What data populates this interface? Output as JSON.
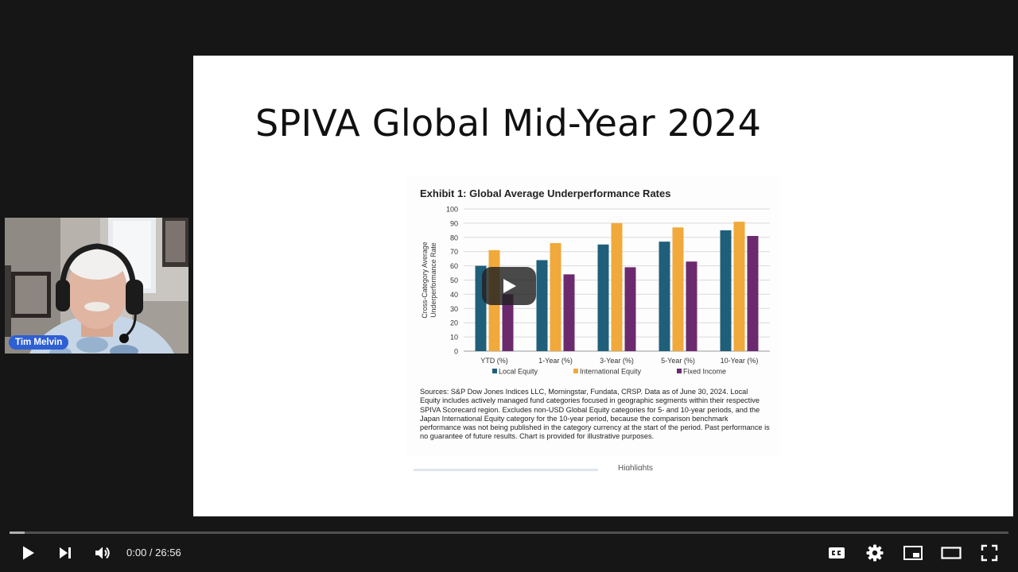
{
  "slide": {
    "title": "SPIVA Global Mid-Year 2024"
  },
  "exhibit": {
    "title": "Exhibit 1: Global Average Underperformance Rates",
    "sources": "Sources: S&P Dow Jones Indices LLC, Morningstar, Fundata, CRSP.  Data as of June 30, 2024.  Local Equity includes actively managed fund categories focused in geographic segments within their respective SPIVA Scorecard region.  Excludes non-USD Global Equity categories for 5- and 10-year periods, and the Japan International Equity category for the 10-year period, because the comparison benchmark performance was not being published in the category currency at the start of the period.  Past performance is no guarantee of future results.  Chart is provided for illustrative purposes.",
    "footer_fragment": "Highlights"
  },
  "chart_data": {
    "type": "bar",
    "title": "Exhibit 1: Global Average Underperformance Rates",
    "xlabel": "",
    "ylabel": "Cross-Category Average Underperformance Rate",
    "ylim": [
      0,
      100
    ],
    "yticks": [
      0,
      10,
      20,
      30,
      40,
      50,
      60,
      70,
      80,
      90,
      100
    ],
    "grid": true,
    "legend_position": "bottom",
    "categories": [
      "YTD (%)",
      "1-Year (%)",
      "3-Year (%)",
      "5-Year (%)",
      "10-Year (%)"
    ],
    "series": [
      {
        "name": "Local Equity",
        "color": "#1f5f7a",
        "values": [
          60,
          64,
          75,
          77,
          85
        ]
      },
      {
        "name": "International Equity",
        "color": "#f0a93a",
        "values": [
          71,
          76,
          90,
          87,
          91
        ]
      },
      {
        "name": "Fixed Income",
        "color": "#6b2a6e",
        "values": [
          40,
          54,
          59,
          63,
          81
        ]
      }
    ]
  },
  "webcam": {
    "name": "Tim Melvin"
  },
  "player": {
    "current_time": "0:00",
    "separator": " / ",
    "duration": "26:56",
    "progress": 0.015,
    "icons": [
      "play-icon",
      "next-icon",
      "volume-icon",
      "captions-icon",
      "settings-icon",
      "miniplayer-icon",
      "theater-icon",
      "fullscreen-icon"
    ]
  }
}
